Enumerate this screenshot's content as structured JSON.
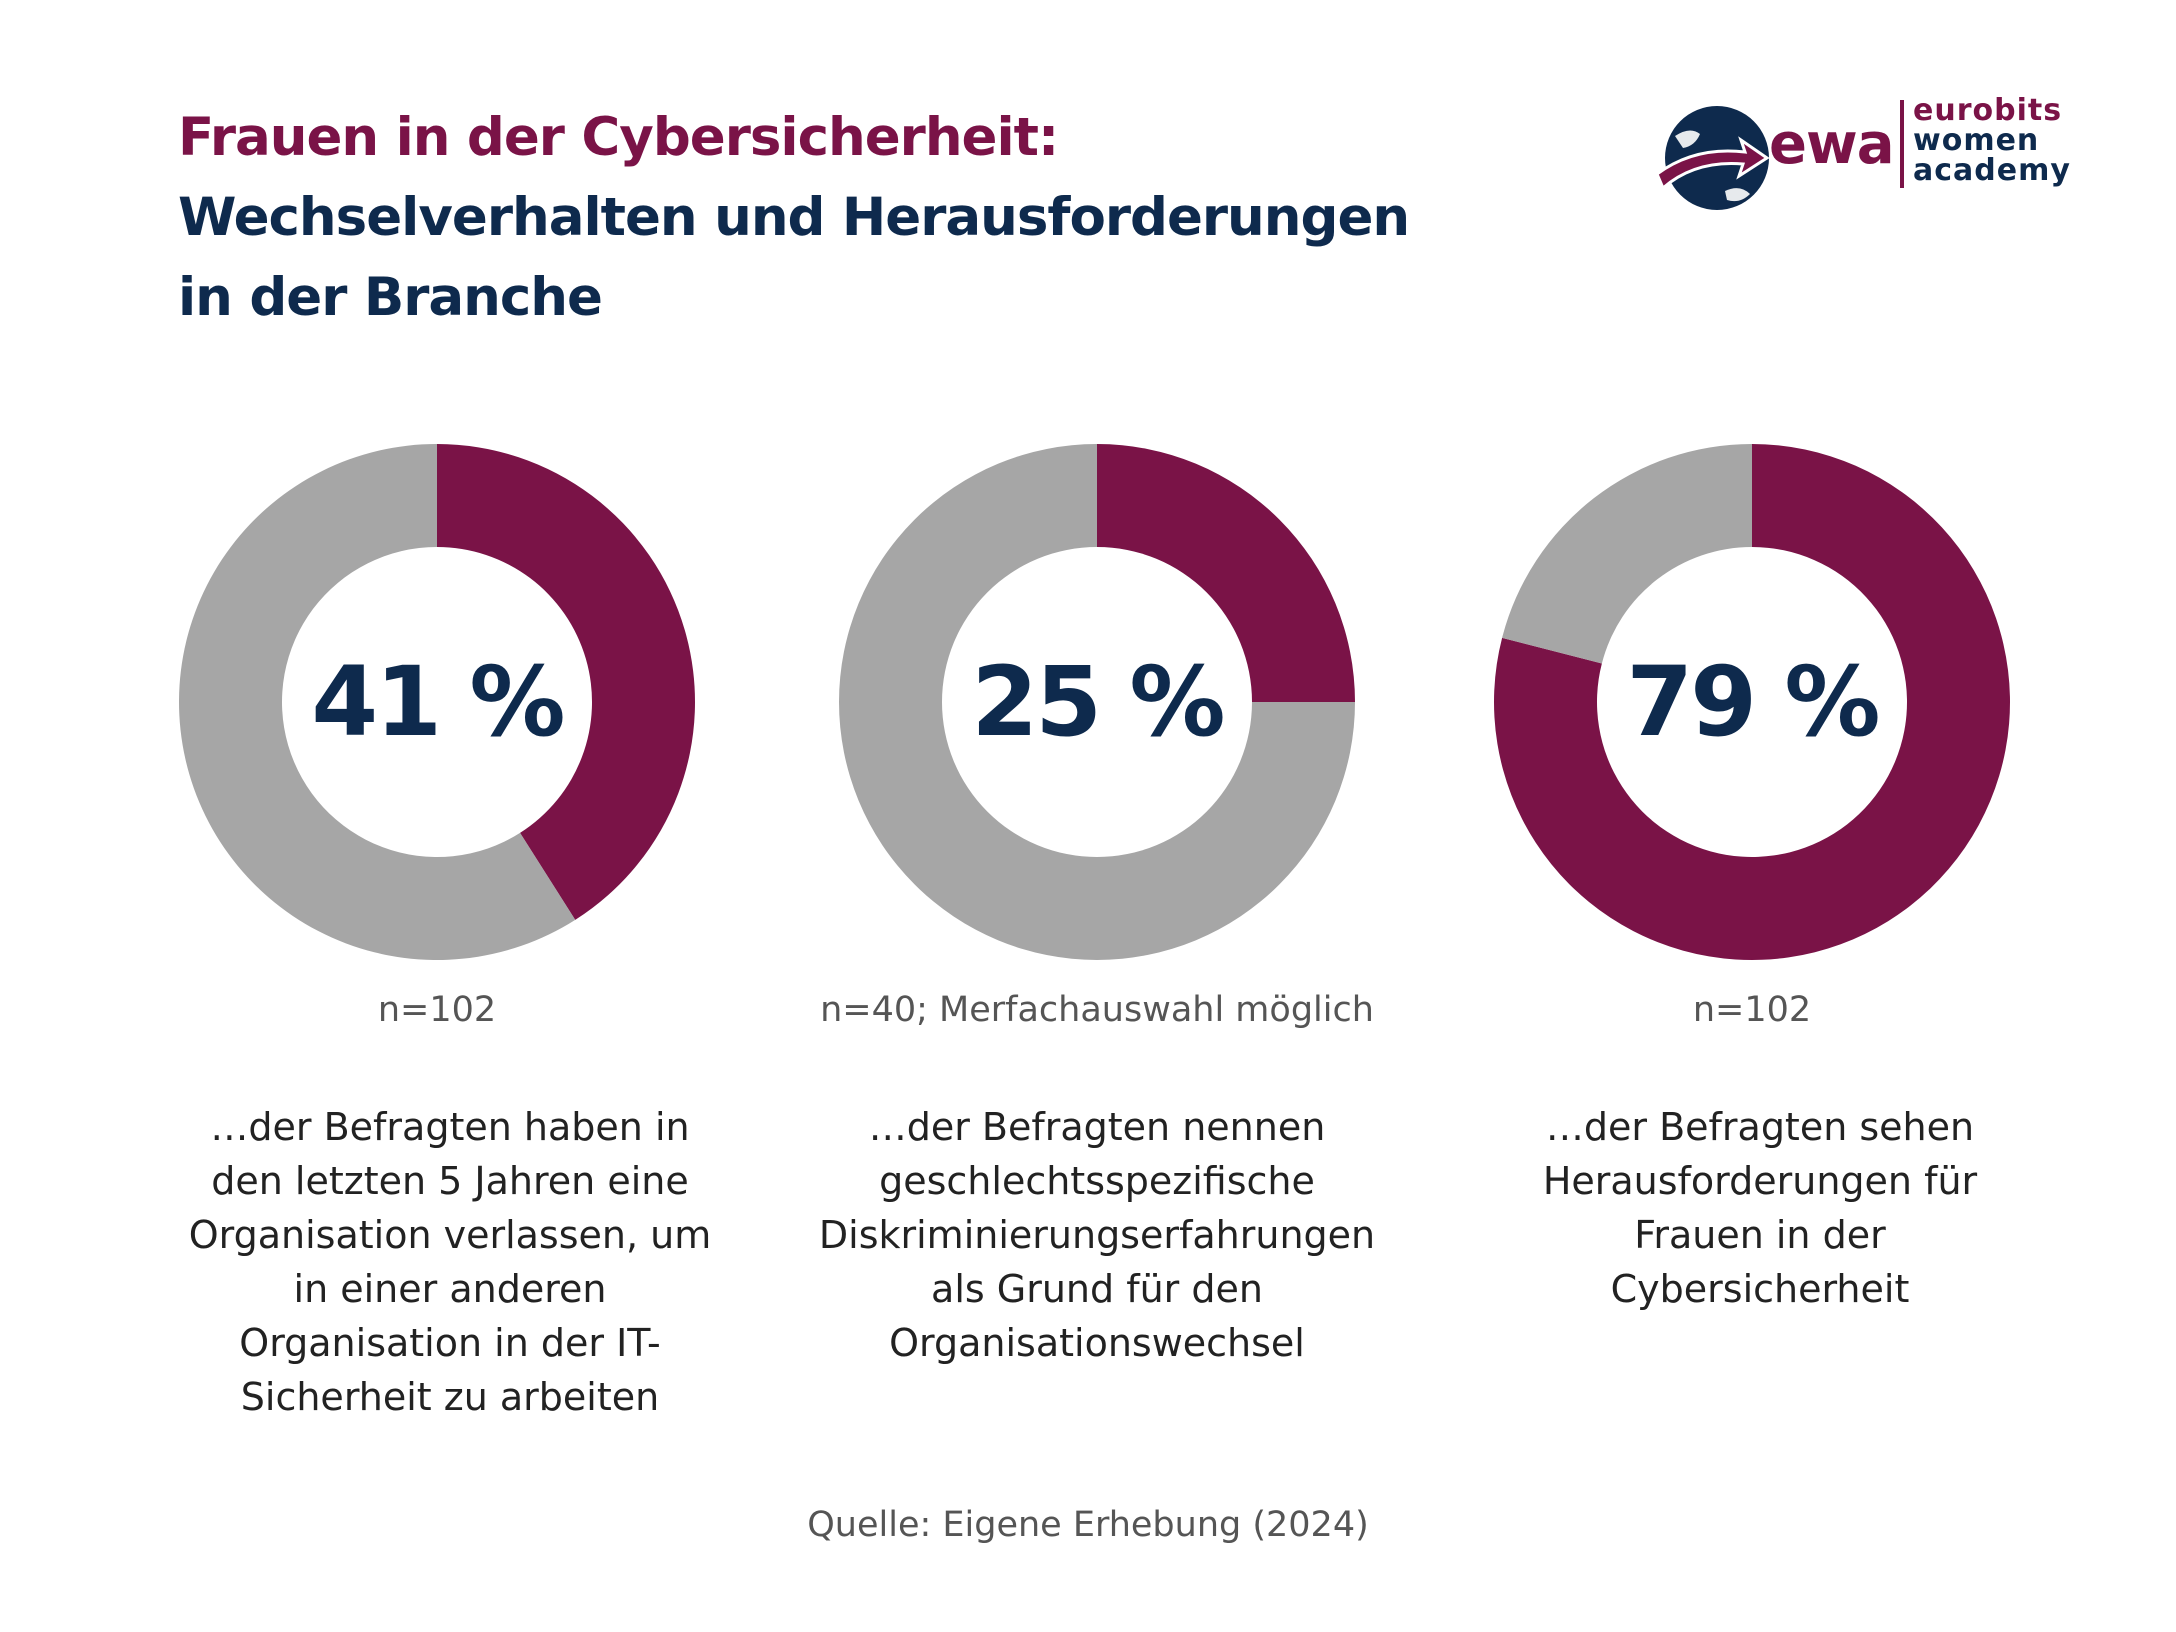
{
  "title": {
    "line1": "Frauen in der Cybersicherheit:",
    "line2": "Wechselverhalten und Herausforderungen",
    "line3": "in der Branche"
  },
  "logo": {
    "mark": "ewa",
    "line1": "eurobits",
    "line2": "women",
    "line3": "academy"
  },
  "colors": {
    "highlight": "#7a1347",
    "rest": "#a6a6a6",
    "title_dark": "#0e2a4d"
  },
  "chart_data": [
    {
      "type": "pie",
      "value_label": "41 %",
      "values": [
        41,
        59
      ],
      "n_label": "n=102",
      "description": "…der Befragten haben in den letzten 5 Jahren eine Organisation verlassen, um in einer anderen Organisation in der IT-Sicherheit zu arbeiten"
    },
    {
      "type": "pie",
      "value_label": "25 %",
      "values": [
        25,
        75
      ],
      "n_label": "n=40; Merfachauswahl möglich",
      "description": "…der Befragten nennen geschlechtsspezifische Diskriminierungserfahrungen als Grund für den Organisationswechsel"
    },
    {
      "type": "pie",
      "value_label": "79 %",
      "values": [
        79,
        21
      ],
      "n_label": "n=102",
      "description": "…der Befragten sehen Herausforderungen für Frauen in der Cybersicherheit"
    }
  ],
  "source": "Quelle: Eigene Erhebung (2024)"
}
